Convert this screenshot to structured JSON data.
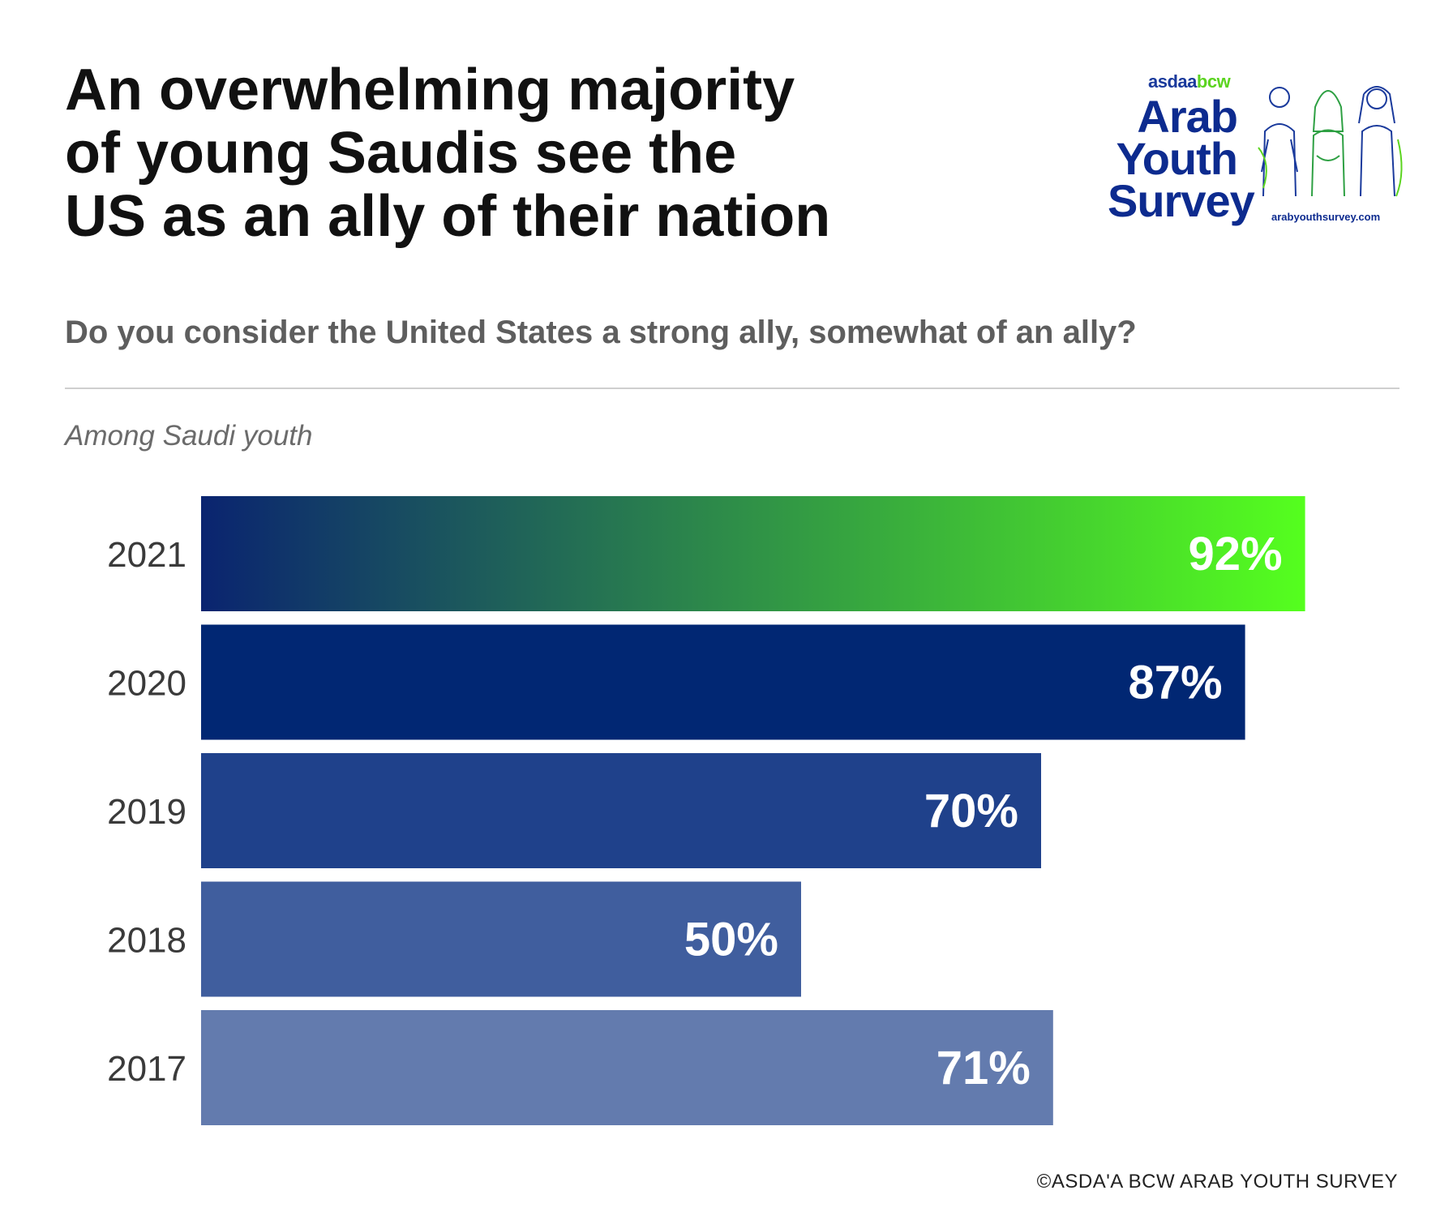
{
  "header": {
    "title": "An overwhelming majority\nof young Saudis see the\nUS as an ally of their nation",
    "question": "Do you consider the United States a strong ally, somewhat of an ally?",
    "subtitle": "Among Saudi youth"
  },
  "logo": {
    "brand_part1": "asdaa",
    "brand_part2": "bcw",
    "line1": "Arab",
    "line2": "Youth",
    "line3": "Survey",
    "url": "arabyouthsurvey.com",
    "figures_icon": "three-people-line-art-icon"
  },
  "footer": {
    "copyright": "©ASDA'A BCW ARAB YOUTH SURVEY"
  },
  "colors": {
    "title": "#111111",
    "question": "#5e5e5e",
    "gradient_start": "#0a2470",
    "gradient_end": "#55ff1e",
    "bar_2020": "#012773",
    "bar_2019": "#1f418b",
    "bar_2018": "#405e9e",
    "bar_2017": "#637bae"
  },
  "chart_data": {
    "type": "bar",
    "orientation": "horizontal",
    "title": "Do you consider the United States a strong ally, somewhat of an ally?",
    "subtitle": "Among Saudi youth",
    "categories": [
      "2021",
      "2020",
      "2019",
      "2018",
      "2017"
    ],
    "values": [
      92,
      87,
      70,
      50,
      71
    ],
    "labels": [
      "92%",
      "87%",
      "70%",
      "50%",
      "71%"
    ],
    "unit": "%",
    "xlim": [
      0,
      100
    ],
    "xlabel": "",
    "ylabel": "",
    "grid": false,
    "legend": "none"
  }
}
